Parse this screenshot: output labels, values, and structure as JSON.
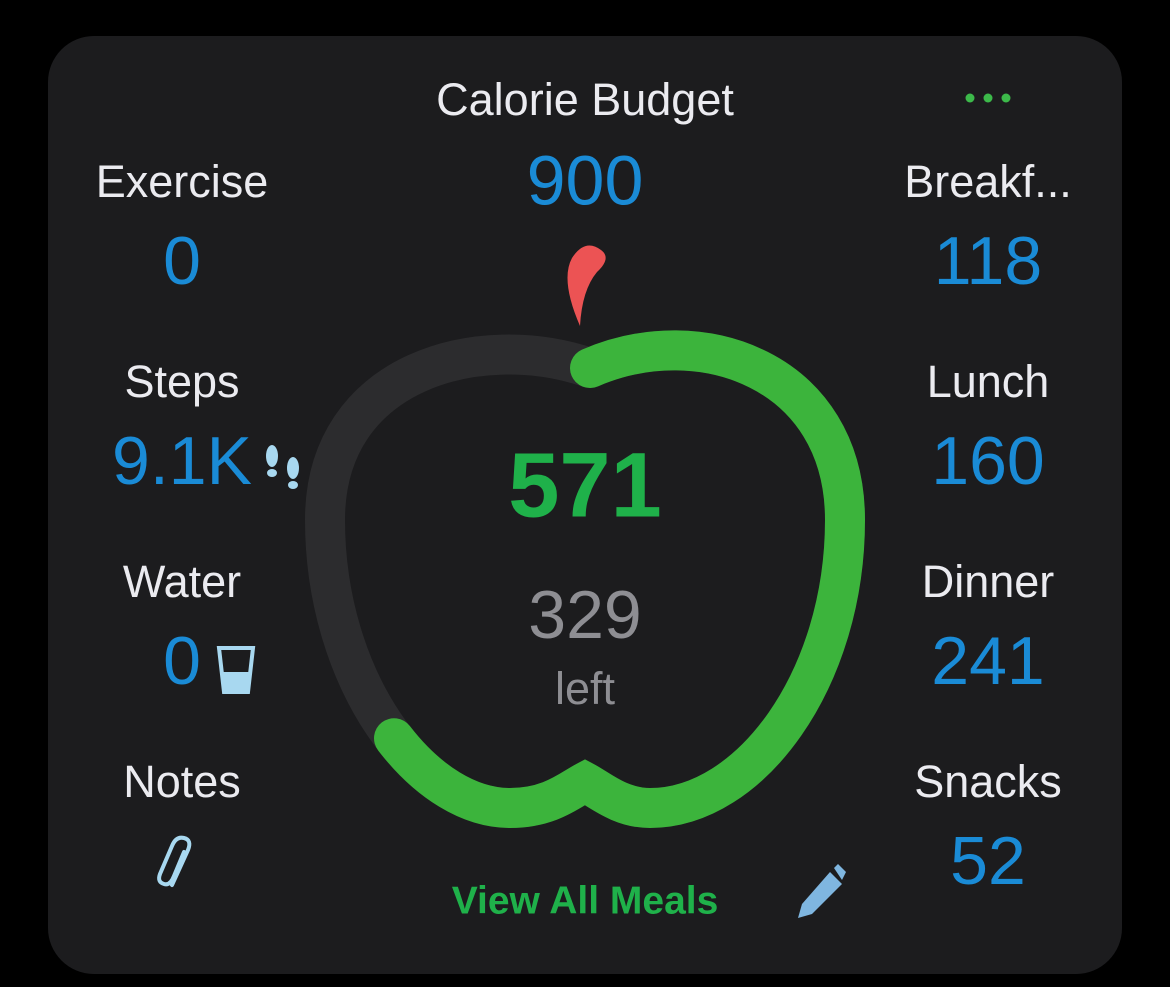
{
  "header": {
    "title": "Calorie Budget",
    "budget": 900
  },
  "left": [
    {
      "label": "Exercise",
      "value": 0
    },
    {
      "label": "Steps",
      "value": "9.1K"
    },
    {
      "label": "Water",
      "value": 0
    },
    {
      "label": "Notes"
    }
  ],
  "right": [
    {
      "label": "Breakf...",
      "value": 118
    },
    {
      "label": "Lunch",
      "value": 160
    },
    {
      "label": "Dinner",
      "value": 241
    },
    {
      "label": "Snacks",
      "value": 52
    }
  ],
  "center": {
    "consumed": 571,
    "remaining": 329,
    "remaining_label": "left"
  },
  "footer": {
    "link": "View All Meals"
  }
}
